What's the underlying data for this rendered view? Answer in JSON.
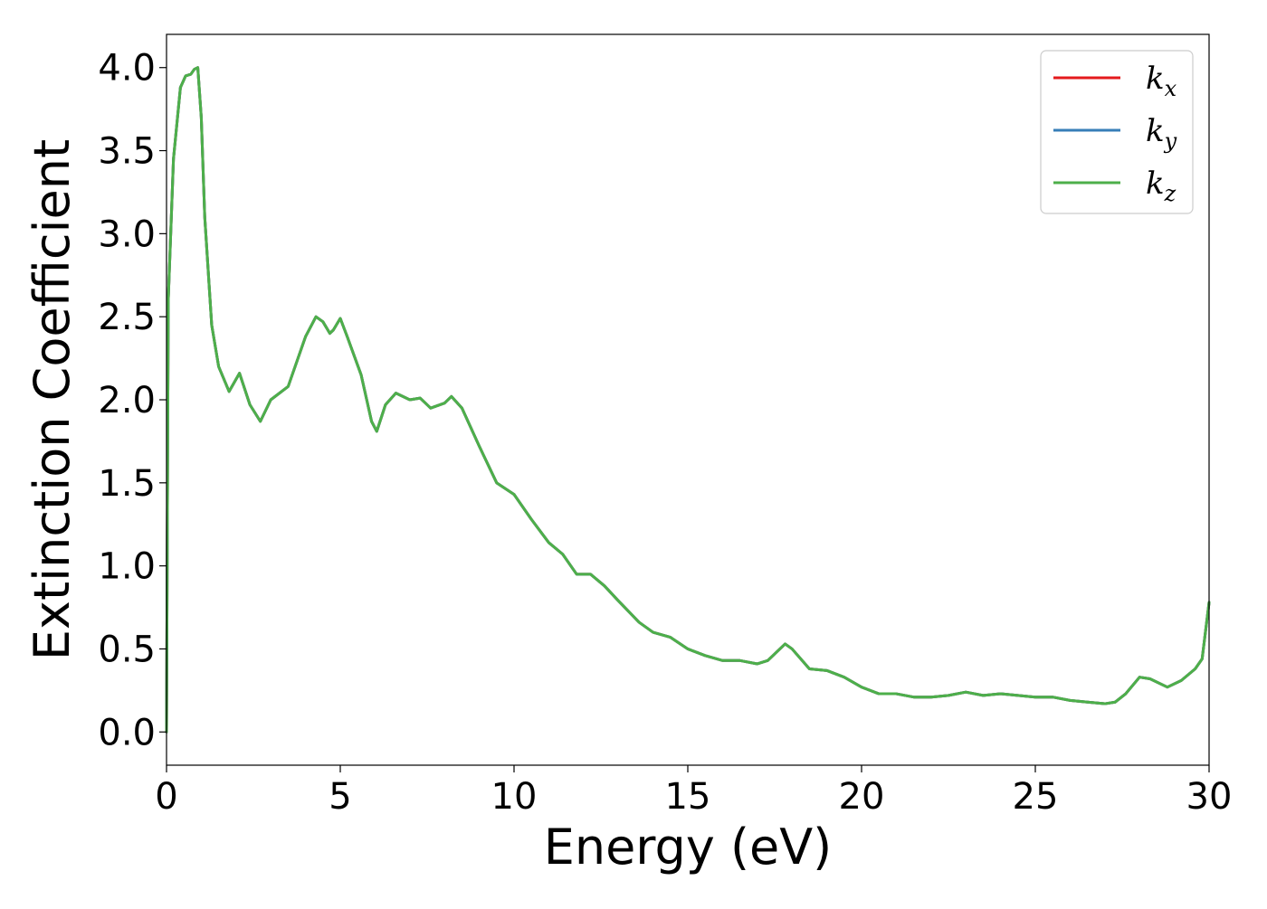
{
  "chart_data": {
    "type": "line",
    "title": "",
    "xlabel": "Energy (eV)",
    "ylabel": "Extinction Coefficient",
    "xlim": [
      0,
      30
    ],
    "ylim": [
      -0.2,
      4.2
    ],
    "xticks": [
      0,
      5,
      10,
      15,
      20,
      25,
      30
    ],
    "yticks": [
      "0.0",
      "0.5",
      "1.0",
      "1.5",
      "2.0",
      "2.5",
      "3.0",
      "3.5",
      "4.0"
    ],
    "grid": false,
    "legend_position": "top-right",
    "series": [
      {
        "name": "k",
        "subscript": "x",
        "color": "#e41a1c"
      },
      {
        "name": "k",
        "subscript": "y",
        "color": "#377eb8"
      },
      {
        "name": "k",
        "subscript": "z",
        "color": "#4daf4a"
      }
    ],
    "x": [
      0,
      0.05,
      0.2,
      0.4,
      0.55,
      0.7,
      0.8,
      0.9,
      1.0,
      1.1,
      1.3,
      1.5,
      1.8,
      2.1,
      2.4,
      2.7,
      3.0,
      3.5,
      4.0,
      4.3,
      4.5,
      4.7,
      4.8,
      5.0,
      5.2,
      5.6,
      5.9,
      6.05,
      6.3,
      6.6,
      7.0,
      7.3,
      7.6,
      8.0,
      8.2,
      8.5,
      9.0,
      9.5,
      10.0,
      10.5,
      11.0,
      11.4,
      11.8,
      12.2,
      12.6,
      13.0,
      13.6,
      14.0,
      14.5,
      15.0,
      15.5,
      16.0,
      16.5,
      17.0,
      17.3,
      17.6,
      17.8,
      18.0,
      18.5,
      19.0,
      19.5,
      20.0,
      20.5,
      21.0,
      21.5,
      22.0,
      22.5,
      23.0,
      23.5,
      24.0,
      24.5,
      25.0,
      25.5,
      26.0,
      26.5,
      27.0,
      27.3,
      27.6,
      28.0,
      28.3,
      28.8,
      29.2,
      29.6,
      29.8,
      30.0
    ],
    "values": [
      0.0,
      2.6,
      3.45,
      3.88,
      3.95,
      3.96,
      3.99,
      4.0,
      3.7,
      3.1,
      2.45,
      2.2,
      2.05,
      2.16,
      1.97,
      1.87,
      2.0,
      2.08,
      2.38,
      2.5,
      2.47,
      2.4,
      2.42,
      2.49,
      2.38,
      2.15,
      1.87,
      1.81,
      1.97,
      2.04,
      2.0,
      2.01,
      1.95,
      1.98,
      2.02,
      1.95,
      1.72,
      1.5,
      1.43,
      1.28,
      1.14,
      1.07,
      0.95,
      0.95,
      0.88,
      0.79,
      0.66,
      0.6,
      0.57,
      0.5,
      0.46,
      0.43,
      0.43,
      0.41,
      0.43,
      0.49,
      0.53,
      0.5,
      0.38,
      0.37,
      0.33,
      0.27,
      0.23,
      0.23,
      0.21,
      0.21,
      0.22,
      0.24,
      0.22,
      0.23,
      0.22,
      0.21,
      0.21,
      0.19,
      0.18,
      0.17,
      0.18,
      0.23,
      0.33,
      0.32,
      0.27,
      0.31,
      0.38,
      0.44,
      0.78
    ]
  }
}
